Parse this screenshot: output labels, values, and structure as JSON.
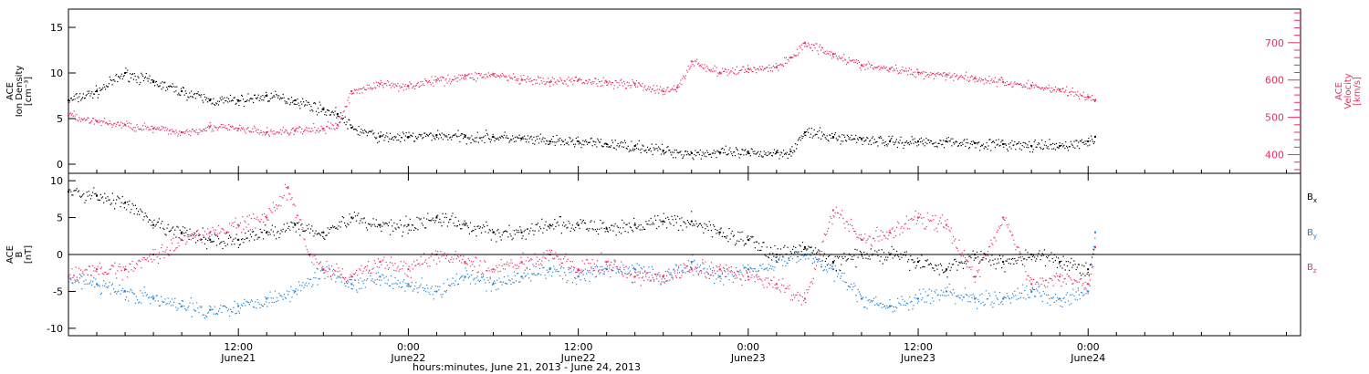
{
  "colors": {
    "black": "#000000",
    "red": "#e8305f",
    "blue": "#1e7fd8"
  },
  "chart_data": [
    {
      "type": "scatter",
      "title": "",
      "ylabel_lines": [
        "ACE",
        "Ion Density",
        "[cm⁻³]"
      ],
      "ylim": [
        -1,
        17
      ],
      "yticks": [
        0,
        5,
        10,
        15
      ],
      "ylabel_right_lines": [
        "ACE",
        "Velocity",
        "[km/s]"
      ],
      "ylim_right": [
        350,
        790
      ],
      "yticks_right": [
        400,
        500,
        600,
        700
      ],
      "x_range": [
        "2013-06-21 00:00",
        "2013-06-24 15:00"
      ],
      "series": [
        {
          "color": "#000000",
          "axis": "left",
          "x": [
            "2013-06-21 00:00",
            "2013-06-21 02:00",
            "2013-06-21 04:00",
            "2013-06-21 06:00",
            "2013-06-21 08:00",
            "2013-06-21 10:00",
            "2013-06-21 12:00",
            "2013-06-21 14:00",
            "2013-06-21 16:00",
            "2013-06-21 18:00",
            "2013-06-21 19:00",
            "2013-06-21 20:00",
            "2013-06-21 22:00",
            "2013-06-22 00:00",
            "2013-06-22 02:00",
            "2013-06-22 04:00",
            "2013-06-22 06:00",
            "2013-06-22 08:00",
            "2013-06-22 10:00",
            "2013-06-22 12:00",
            "2013-06-22 14:00",
            "2013-06-22 16:00",
            "2013-06-22 18:00",
            "2013-06-22 20:00",
            "2013-06-22 22:00",
            "2013-06-23 00:00",
            "2013-06-23 02:00",
            "2013-06-23 03:00",
            "2013-06-23 04:00",
            "2013-06-23 06:00",
            "2013-06-23 08:00",
            "2013-06-23 10:00",
            "2013-06-23 12:00",
            "2013-06-23 14:00",
            "2013-06-23 16:00",
            "2013-06-23 18:00",
            "2013-06-23 20:00",
            "2013-06-23 22:00",
            "2013-06-24 00:00",
            "2013-06-24 00:30"
          ],
          "y": [
            7,
            8,
            10,
            9,
            8,
            7,
            7,
            7.5,
            7,
            6,
            5.5,
            4,
            3,
            3,
            3.2,
            3,
            3,
            2.8,
            2.5,
            2.5,
            2.2,
            2,
            1.5,
            1.2,
            1.3,
            1.2,
            1.3,
            1.4,
            3.5,
            3,
            2.8,
            2.5,
            2.5,
            2.5,
            2.3,
            2.2,
            2,
            2,
            2.5,
            3
          ]
        },
        {
          "color": "#e8305f",
          "axis": "right",
          "x": [
            "2013-06-21 00:00",
            "2013-06-21 02:00",
            "2013-06-21 04:00",
            "2013-06-21 06:00",
            "2013-06-21 08:00",
            "2013-06-21 10:00",
            "2013-06-21 12:00",
            "2013-06-21 14:00",
            "2013-06-21 16:00",
            "2013-06-21 18:00",
            "2013-06-21 19:00",
            "2013-06-21 20:00",
            "2013-06-21 22:00",
            "2013-06-22 00:00",
            "2013-06-22 02:00",
            "2013-06-22 04:00",
            "2013-06-22 06:00",
            "2013-06-22 08:00",
            "2013-06-22 10:00",
            "2013-06-22 12:00",
            "2013-06-22 14:00",
            "2013-06-22 16:00",
            "2013-06-22 18:00",
            "2013-06-22 19:00",
            "2013-06-22 20:00",
            "2013-06-22 22:00",
            "2013-06-23 00:00",
            "2013-06-23 02:00",
            "2013-06-23 03:00",
            "2013-06-23 04:00",
            "2013-06-23 06:00",
            "2013-06-23 08:00",
            "2013-06-23 10:00",
            "2013-06-23 12:00",
            "2013-06-23 14:00",
            "2013-06-23 16:00",
            "2013-06-23 18:00",
            "2013-06-23 20:00",
            "2013-06-23 22:00",
            "2013-06-24 00:00",
            "2013-06-24 00:30"
          ],
          "y": [
            505,
            490,
            480,
            470,
            460,
            475,
            470,
            460,
            465,
            470,
            480,
            570,
            590,
            585,
            600,
            610,
            615,
            600,
            595,
            600,
            595,
            590,
            570,
            580,
            650,
            620,
            630,
            635,
            660,
            700,
            670,
            640,
            630,
            620,
            615,
            605,
            595,
            585,
            575,
            555,
            545
          ]
        }
      ]
    },
    {
      "type": "scatter",
      "title": "",
      "ylabel_lines": [
        "ACE",
        "B",
        "[nT]"
      ],
      "ylim": [
        -11,
        11
      ],
      "yticks": [
        -10,
        -5,
        0,
        5,
        10
      ],
      "x_range": [
        "2013-06-21 00:00",
        "2013-06-24 15:00"
      ],
      "zero_line": true,
      "legend_position": "right",
      "series": [
        {
          "name": "Bx",
          "legend_base": "B",
          "legend_sub": "x",
          "color": "#000000",
          "x": [
            "2013-06-21 00:00",
            "2013-06-21 02:00",
            "2013-06-21 04:00",
            "2013-06-21 06:00",
            "2013-06-21 08:00",
            "2013-06-21 10:00",
            "2013-06-21 12:00",
            "2013-06-21 14:00",
            "2013-06-21 16:00",
            "2013-06-21 18:00",
            "2013-06-21 20:00",
            "2013-06-21 22:00",
            "2013-06-22 00:00",
            "2013-06-22 02:00",
            "2013-06-22 04:00",
            "2013-06-22 06:00",
            "2013-06-22 08:00",
            "2013-06-22 10:00",
            "2013-06-22 12:00",
            "2013-06-22 14:00",
            "2013-06-22 16:00",
            "2013-06-22 18:00",
            "2013-06-22 20:00",
            "2013-06-22 22:00",
            "2013-06-23 00:00",
            "2013-06-23 02:00",
            "2013-06-23 04:00",
            "2013-06-23 06:00",
            "2013-06-23 08:00",
            "2013-06-23 10:00",
            "2013-06-23 12:00",
            "2013-06-23 14:00",
            "2013-06-23 16:00",
            "2013-06-23 18:00",
            "2013-06-23 20:00",
            "2013-06-23 22:00",
            "2013-06-24 00:00",
            "2013-06-24 00:30"
          ],
          "y": [
            8.5,
            8,
            7,
            4,
            3,
            2,
            2,
            3,
            4,
            3,
            5,
            4,
            4,
            5,
            4,
            3,
            3,
            4,
            4,
            3.5,
            4,
            4.5,
            4.5,
            3,
            2,
            0,
            1,
            -1,
            0,
            0,
            -1,
            -2,
            0,
            -1,
            0,
            -1,
            -2,
            1
          ]
        },
        {
          "name": "By",
          "legend_base": "B",
          "legend_sub": "y",
          "color": "#1e7fd8",
          "x": [
            "2013-06-21 00:00",
            "2013-06-21 02:00",
            "2013-06-21 04:00",
            "2013-06-21 06:00",
            "2013-06-21 08:00",
            "2013-06-21 10:00",
            "2013-06-21 12:00",
            "2013-06-21 14:00",
            "2013-06-21 16:00",
            "2013-06-21 18:00",
            "2013-06-21 20:00",
            "2013-06-21 22:00",
            "2013-06-22 00:00",
            "2013-06-22 02:00",
            "2013-06-22 04:00",
            "2013-06-22 06:00",
            "2013-06-22 08:00",
            "2013-06-22 10:00",
            "2013-06-22 12:00",
            "2013-06-22 14:00",
            "2013-06-22 16:00",
            "2013-06-22 18:00",
            "2013-06-22 20:00",
            "2013-06-22 22:00",
            "2013-06-23 00:00",
            "2013-06-23 02:00",
            "2013-06-23 04:00",
            "2013-06-23 06:00",
            "2013-06-23 08:00",
            "2013-06-23 10:00",
            "2013-06-23 12:00",
            "2013-06-23 14:00",
            "2013-06-23 16:00",
            "2013-06-23 18:00",
            "2013-06-23 20:00",
            "2013-06-23 22:00",
            "2013-06-24 00:00",
            "2013-06-24 00:30"
          ],
          "y": [
            -3,
            -4,
            -5,
            -6,
            -7,
            -7.5,
            -7,
            -6,
            -5,
            -2,
            -4,
            -3,
            -4,
            -5,
            -3,
            -4,
            -3,
            -2,
            -3,
            -2,
            -2,
            -3,
            -1,
            -3,
            -2,
            -1,
            0,
            -2,
            -6,
            -7,
            -6,
            -5,
            -6,
            -6,
            -5,
            -6,
            -5,
            3
          ]
        },
        {
          "name": "Bz",
          "legend_base": "B",
          "legend_sub": "z",
          "color": "#e8305f",
          "x": [
            "2013-06-21 00:00",
            "2013-06-21 02:00",
            "2013-06-21 04:00",
            "2013-06-21 06:00",
            "2013-06-21 08:00",
            "2013-06-21 10:00",
            "2013-06-21 12:00",
            "2013-06-21 14:00",
            "2013-06-21 15:30",
            "2013-06-21 17:00",
            "2013-06-21 18:00",
            "2013-06-21 20:00",
            "2013-06-21 22:00",
            "2013-06-22 00:00",
            "2013-06-22 02:00",
            "2013-06-22 04:00",
            "2013-06-22 06:00",
            "2013-06-22 08:00",
            "2013-06-22 10:00",
            "2013-06-22 12:00",
            "2013-06-22 14:00",
            "2013-06-22 16:00",
            "2013-06-22 18:00",
            "2013-06-22 20:00",
            "2013-06-22 22:00",
            "2013-06-23 00:00",
            "2013-06-23 02:00",
            "2013-06-23 04:00",
            "2013-06-23 06:00",
            "2013-06-23 08:00",
            "2013-06-23 10:00",
            "2013-06-23 12:00",
            "2013-06-23 14:00",
            "2013-06-23 16:00",
            "2013-06-23 18:00",
            "2013-06-23 20:00",
            "2013-06-23 22:00",
            "2013-06-24 00:00",
            "2013-06-24 00:30"
          ],
          "y": [
            -3,
            -2,
            -2,
            0,
            2,
            3,
            4,
            5,
            9,
            0,
            -2,
            -3,
            -1,
            -2,
            0,
            -1,
            -2,
            -1,
            0,
            -2,
            -1,
            -3,
            -3,
            -2,
            -2,
            -3,
            -4,
            -6,
            6,
            2,
            3,
            5,
            4,
            -3,
            5,
            -4,
            -3,
            -4,
            1
          ]
        }
      ]
    }
  ],
  "x_axis": {
    "ticks": [
      {
        "time": "2013-06-21 12:00",
        "line1": "12:00",
        "line2": "June21"
      },
      {
        "time": "2013-06-22 00:00",
        "line1": "0:00",
        "line2": "June22"
      },
      {
        "time": "2013-06-22 12:00",
        "line1": "12:00",
        "line2": "June22"
      },
      {
        "time": "2013-06-23 00:00",
        "line1": "0:00",
        "line2": "June23"
      },
      {
        "time": "2013-06-23 12:00",
        "line1": "12:00",
        "line2": "June23"
      },
      {
        "time": "2013-06-24 00:00",
        "line1": "0:00",
        "line2": "June24"
      }
    ],
    "label": "hours:minutes, June 21, 2013 - June 24, 2013"
  }
}
